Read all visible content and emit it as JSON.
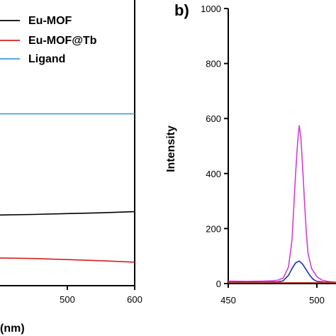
{
  "colors": {
    "eu_mof": "#000000",
    "eu_mof_tb": "#d62020",
    "ligand": "#3b9fd1",
    "panel_b_magenta": "#d63ad6",
    "panel_b_blue": "#1f2fb0",
    "panel_b_red": "#c0392b",
    "axis": "#000000"
  },
  "chart_data": [
    {
      "panel_label": "",
      "type": "line",
      "xlabel": "(nm)",
      "ylabel": "",
      "xlim": [
        400,
        600
      ],
      "x_ticks": [
        500,
        600
      ],
      "legend_placement": "top-right",
      "grid": false,
      "series": [
        {
          "name": "Eu-MOF",
          "color_key": "eu_mof",
          "x": [
            400,
            450,
            500,
            550,
            600
          ],
          "y": [
            0.255,
            0.257,
            0.26,
            0.263,
            0.267
          ]
        },
        {
          "name": "Eu-MOF@Tb",
          "color_key": "eu_mof_tb",
          "x": [
            400,
            450,
            500,
            550,
            600
          ],
          "y": [
            0.1,
            0.098,
            0.094,
            0.09,
            0.085
          ]
        },
        {
          "name": "Ligand",
          "color_key": "ligand",
          "x": [
            400,
            450,
            500,
            550,
            600
          ],
          "y": [
            0.62,
            0.62,
            0.62,
            0.62,
            0.62
          ]
        }
      ]
    },
    {
      "panel_label": "b)",
      "type": "line",
      "xlabel": "",
      "ylabel": "Intensity",
      "xlim": [
        450,
        530
      ],
      "ylim": [
        0,
        1000
      ],
      "x_ticks": [
        450,
        500
      ],
      "y_ticks": [
        0,
        200,
        400,
        600,
        800,
        1000
      ],
      "grid": false,
      "series": [
        {
          "color_key": "panel_b_magenta",
          "x": [
            450,
            460,
            470,
            475,
            478,
            481,
            484,
            486,
            487,
            488,
            489,
            490,
            491,
            492,
            493,
            494,
            495,
            497,
            500,
            503,
            506,
            508,
            510,
            512
          ],
          "y": [
            9,
            8,
            9,
            10,
            12,
            20,
            60,
            160,
            280,
            400,
            500,
            575,
            530,
            420,
            300,
            190,
            110,
            55,
            25,
            12,
            8,
            6,
            5,
            5
          ]
        },
        {
          "color_key": "panel_b_blue",
          "x": [
            450,
            470,
            478,
            481,
            484,
            486,
            488,
            490,
            492,
            494,
            496,
            498,
            500,
            504,
            512
          ],
          "y": [
            5,
            5,
            6,
            10,
            30,
            55,
            75,
            82,
            70,
            50,
            30,
            15,
            8,
            5,
            4
          ]
        },
        {
          "color_key": "panel_b_red",
          "x": [
            450,
            480,
            500,
            512
          ],
          "y": [
            3,
            3,
            3,
            3
          ]
        }
      ]
    }
  ]
}
